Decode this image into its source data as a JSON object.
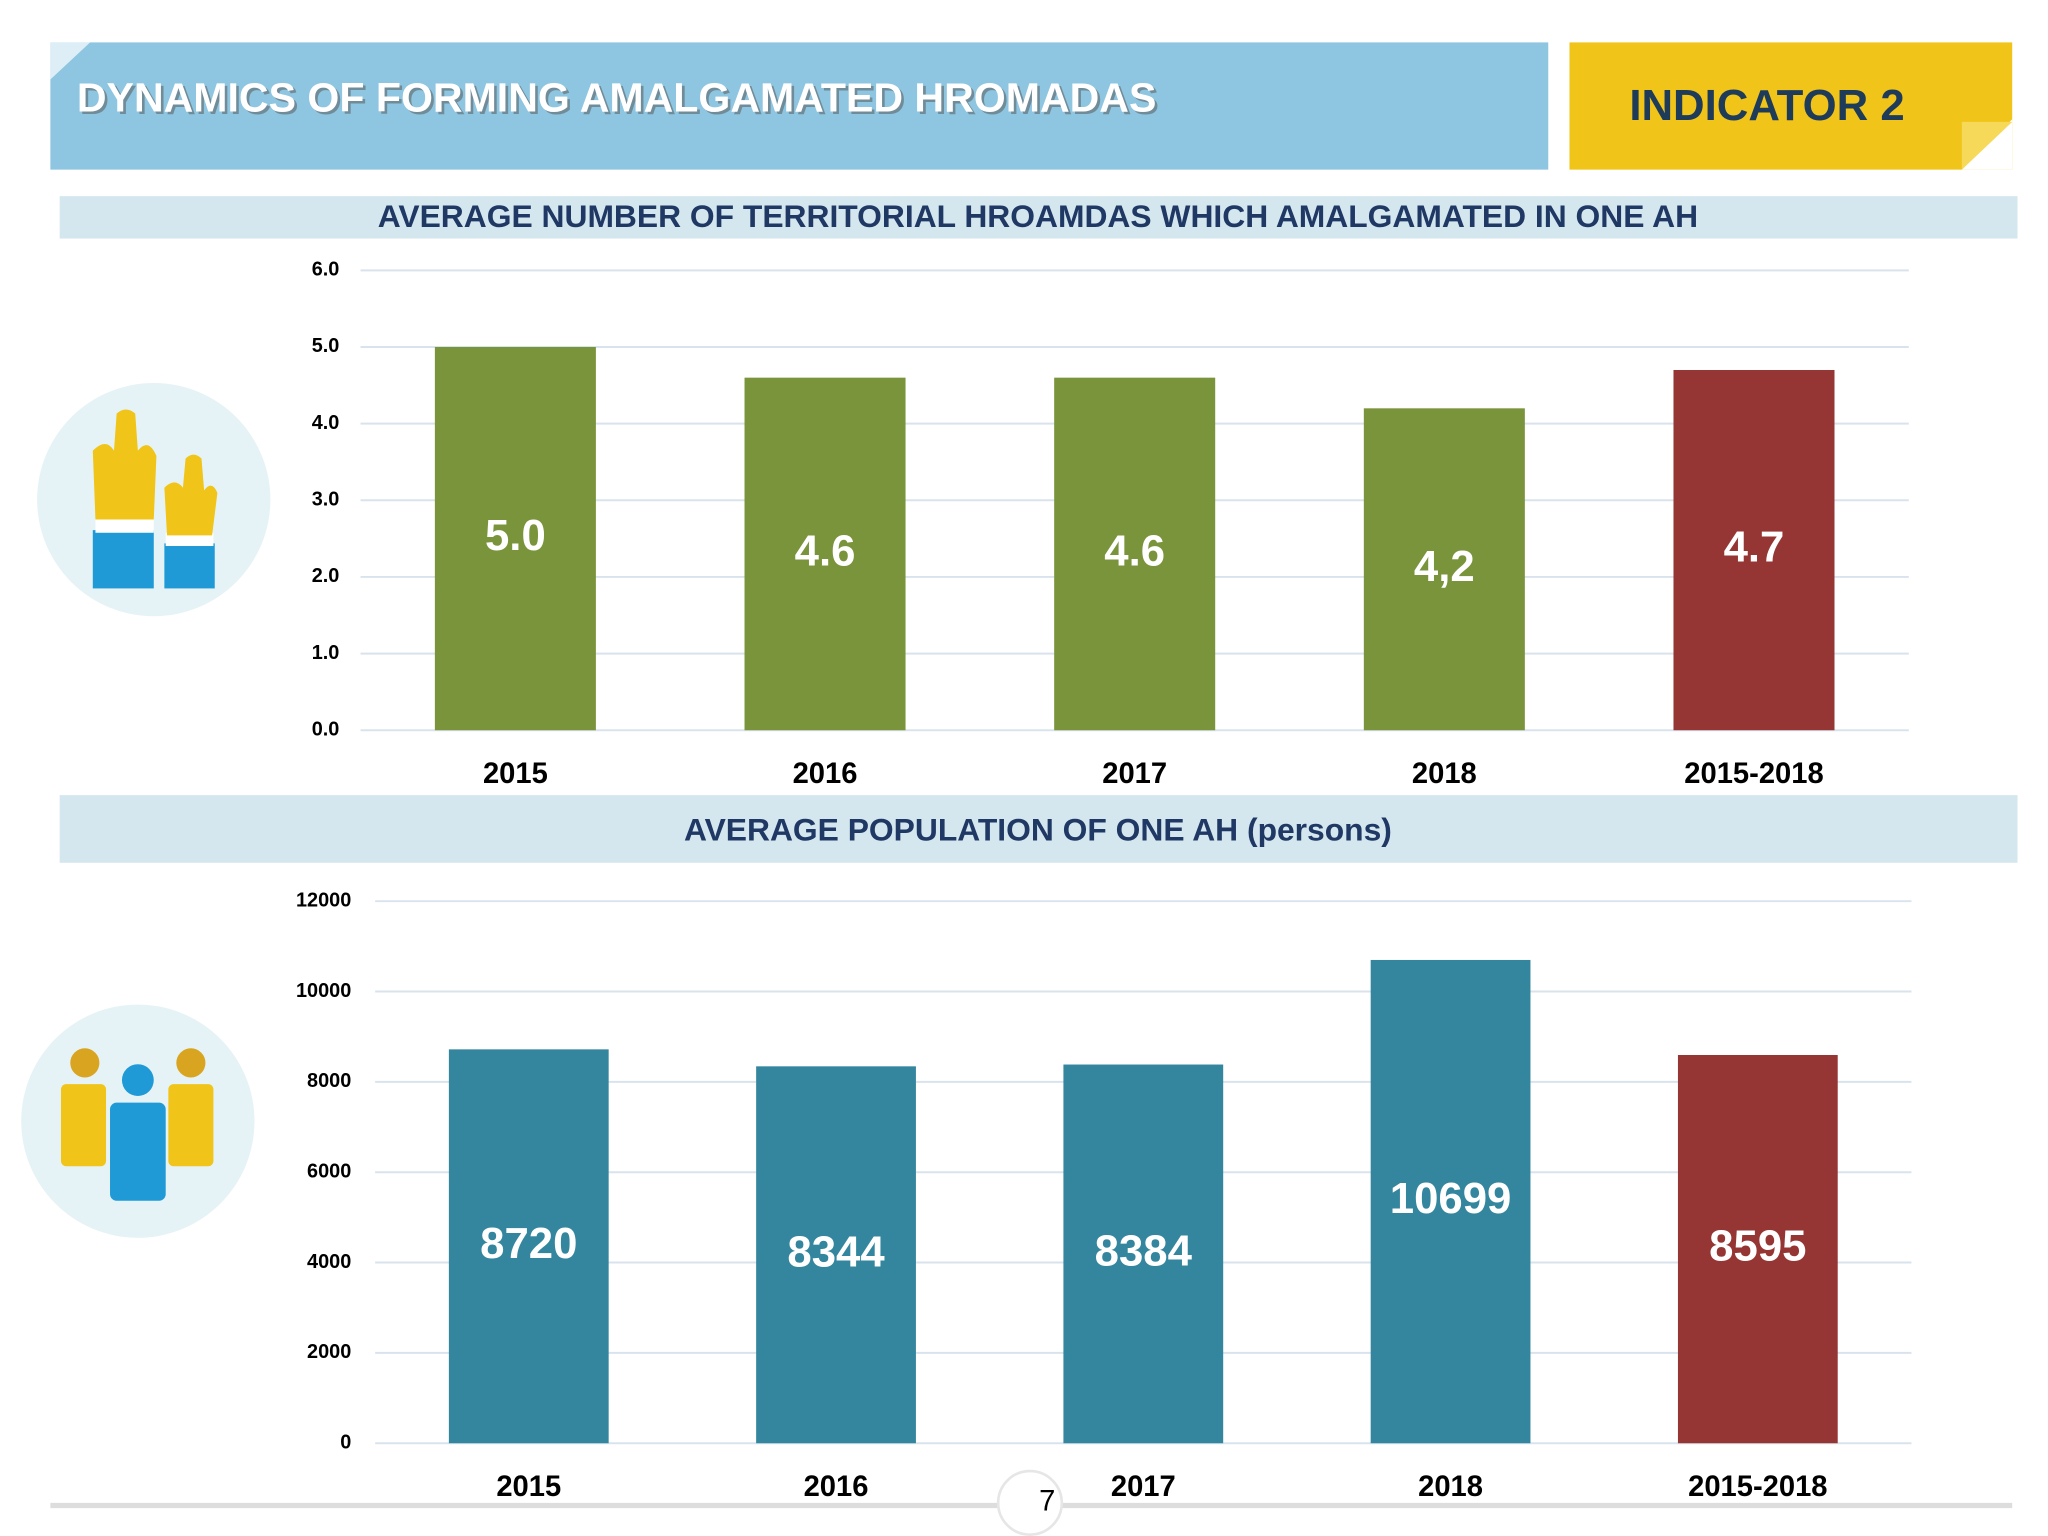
{
  "header": {
    "title": "DYNAMICS OF FORMING AMALGAMATED HROMADAS",
    "indicator": "INDICATOR 2"
  },
  "page_number": 7,
  "chart_data": [
    {
      "type": "bar",
      "title": "AVERAGE NUMBER OF TERRITORIAL HROAMDAS WHICH AMALGAMATED IN ONE AH",
      "categories": [
        "2015",
        "2016",
        "2017",
        "2018",
        "2015-2018"
      ],
      "values": [
        5.0,
        4.6,
        4.6,
        4.2,
        4.7
      ],
      "value_labels": [
        "5.0",
        "4.6",
        "4.6",
        "4,2",
        "4.7"
      ],
      "colors": [
        "#7a943b",
        "#7a943b",
        "#7a943b",
        "#7a943b",
        "#963634"
      ],
      "ylim": [
        0,
        6
      ],
      "yticks": [
        {
          "value": 0,
          "label": "0.0"
        },
        {
          "value": 1,
          "label": "1.0"
        },
        {
          "value": 2,
          "label": "2.0"
        },
        {
          "value": 3,
          "label": "3.0"
        },
        {
          "value": 4,
          "label": "4.0"
        },
        {
          "value": 5,
          "label": "5.0"
        },
        {
          "value": 6,
          "label": "6.0"
        }
      ],
      "grid": true
    },
    {
      "type": "bar",
      "title": "AVERAGE POPULATION OF ONE AH (persons)",
      "categories": [
        "2015",
        "2016",
        "2017",
        "2018",
        "2015-2018"
      ],
      "values": [
        8720,
        8344,
        8384,
        10699,
        8595
      ],
      "colors": [
        "#33869e",
        "#33869e",
        "#33869e",
        "#33869e",
        "#963634"
      ],
      "ylim": [
        0,
        12000
      ],
      "yticks": [
        0,
        2000,
        4000,
        6000,
        8000,
        10000,
        12000
      ],
      "grid": true
    }
  ]
}
